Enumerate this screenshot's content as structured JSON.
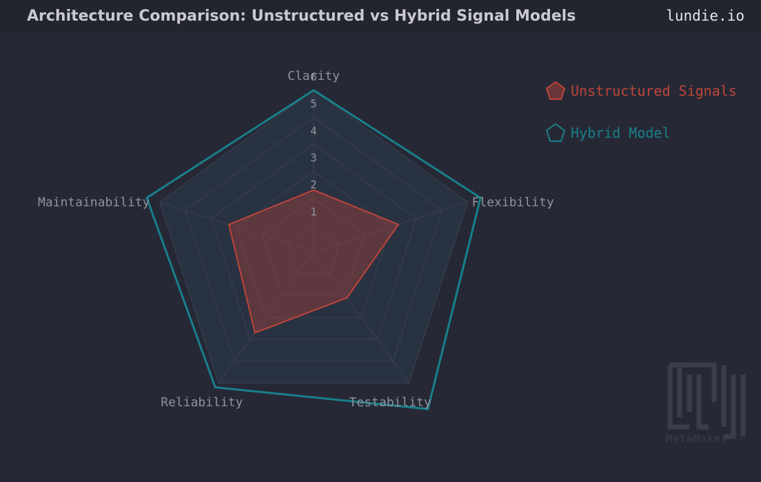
{
  "header": {
    "title": "Architecture Comparison:  Unstructured vs Hybrid Signal Models",
    "brand": "lundie.io"
  },
  "watermark": {
    "text": "MetaMaker"
  },
  "colors": {
    "background": "#262935",
    "grid": "#3c4250",
    "axis_label": "#8f939c",
    "unstructured": "#c0443a",
    "hybrid": "#18808c"
  },
  "chart_data": {
    "type": "radar",
    "axes": [
      "Clarity",
      "Flexibility",
      "Testability",
      "Reliability",
      "Maintainability"
    ],
    "scale": {
      "min": 0,
      "max": 6,
      "ticks": [
        1,
        2,
        3,
        4,
        5,
        6
      ]
    },
    "legend_position": "top-right",
    "series": [
      {
        "name": "Unstructured Signals",
        "values": [
          2.3,
          3.3,
          2.1,
          3.7,
          3.3
        ],
        "color": "#c0443a"
      },
      {
        "name": "Hybrid Model",
        "values": [
          6.0,
          6.5,
          7.2,
          6.2,
          6.5
        ],
        "color": "#18808c"
      }
    ]
  }
}
